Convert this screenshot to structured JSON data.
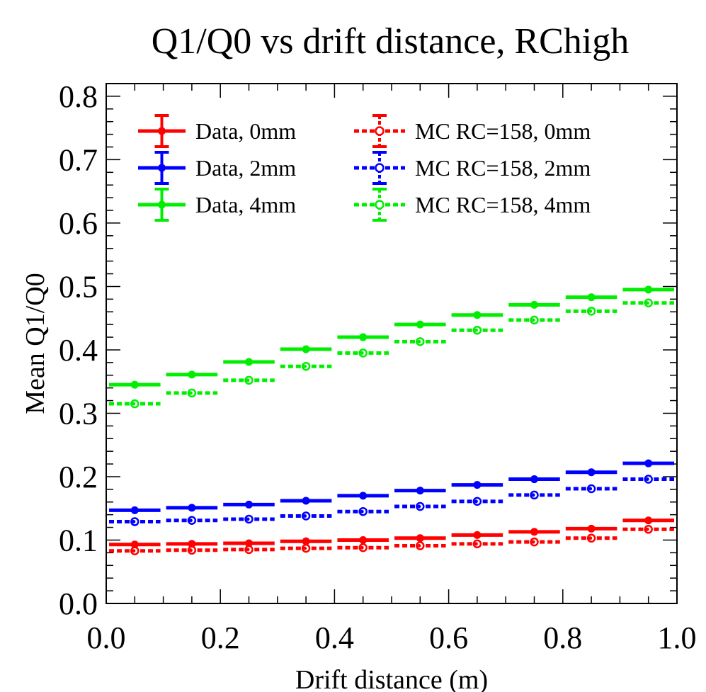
{
  "chart_data": {
    "type": "scatter",
    "title": "Q1/Q0 vs drift distance, RChigh",
    "xlabel": "Drift distance (m)",
    "ylabel": "Mean Q1/Q0",
    "xlim": [
      0.0,
      1.0
    ],
    "ylim": [
      0.0,
      0.82
    ],
    "x_ticks": [
      "0.0",
      "0.2",
      "0.4",
      "0.6",
      "0.8",
      "1.0"
    ],
    "y_ticks": [
      "0.0",
      "0.1",
      "0.2",
      "0.3",
      "0.4",
      "0.5",
      "0.6",
      "0.7",
      "0.8"
    ],
    "x_bin_half_width": 0.05,
    "x": [
      0.05,
      0.15,
      0.25,
      0.35,
      0.45,
      0.55,
      0.65,
      0.75,
      0.85,
      0.95
    ],
    "legend_position": "top-left",
    "series": [
      {
        "name": "Data, 0mm",
        "color": "#ff0000",
        "style": "solid",
        "marker": "filled-circle",
        "values": [
          0.093,
          0.094,
          0.095,
          0.098,
          0.1,
          0.103,
          0.108,
          0.113,
          0.118,
          0.131
        ]
      },
      {
        "name": "Data, 2mm",
        "color": "#0000ff",
        "style": "solid",
        "marker": "filled-circle",
        "values": [
          0.147,
          0.151,
          0.156,
          0.162,
          0.17,
          0.178,
          0.187,
          0.196,
          0.207,
          0.221
        ]
      },
      {
        "name": "Data, 4mm",
        "color": "#00ee00",
        "style": "solid",
        "marker": "filled-circle",
        "values": [
          0.345,
          0.361,
          0.381,
          0.401,
          0.42,
          0.44,
          0.455,
          0.471,
          0.483,
          0.495
        ]
      },
      {
        "name": "MC RC=158, 0mm",
        "color": "#ff0000",
        "style": "dotted",
        "marker": "open-circle",
        "values": [
          0.083,
          0.084,
          0.085,
          0.087,
          0.088,
          0.091,
          0.094,
          0.097,
          0.103,
          0.117
        ]
      },
      {
        "name": "MC RC=158, 2mm",
        "color": "#0000ff",
        "style": "dotted",
        "marker": "open-circle",
        "values": [
          0.129,
          0.131,
          0.133,
          0.138,
          0.145,
          0.153,
          0.161,
          0.171,
          0.181,
          0.196
        ]
      },
      {
        "name": "MC RC=158, 4mm",
        "color": "#00ee00",
        "style": "dotted",
        "marker": "open-circle",
        "values": [
          0.315,
          0.332,
          0.352,
          0.374,
          0.395,
          0.413,
          0.431,
          0.447,
          0.461,
          0.474
        ]
      }
    ]
  }
}
